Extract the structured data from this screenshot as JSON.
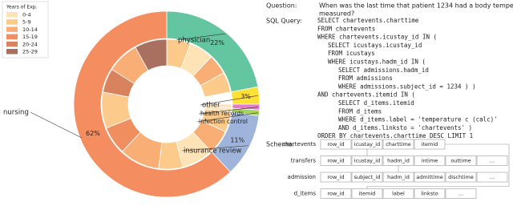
{
  "chart_data": {
    "type": "donut",
    "legend_title": "Years of Exp.",
    "experience_groups": [
      "0-4",
      "5-9",
      "10-14",
      "15-19",
      "20-24",
      "25-29"
    ],
    "experience_colors": [
      "#fde3b6",
      "#fccb8c",
      "#f9ae76",
      "#f08e60",
      "#d8825e",
      "#a9705f"
    ],
    "categories": [
      "physician",
      "other",
      "health records",
      "infection control",
      "insurance review",
      "nursing"
    ],
    "values": [
      22,
      3,
      1,
      1,
      11,
      62
    ],
    "value_labels": [
      "22%",
      "3%",
      null,
      null,
      "11%",
      "62%"
    ],
    "colors": [
      "#63c6a1",
      "#ffe135",
      "#e57cc6",
      "#a7d45a",
      "#9fb4da",
      "#f48d60"
    ],
    "inner_values": [
      6,
      6,
      5,
      5,
      3,
      1,
      1,
      5,
      6,
      8,
      6,
      10,
      7,
      9,
      6,
      8,
      8
    ],
    "inner_colors": [
      "#fccb8c",
      "#fde3b6",
      "#f9ae76",
      "#fccb8c",
      "#ffffff",
      "#fde3b6",
      "#fde3b6",
      "#fccb8c",
      "#f9ae76",
      "#fde3b6",
      "#fccb8c",
      "#f9ae76",
      "#f08e60",
      "#fccb8c",
      "#d8825e",
      "#f9ae76",
      "#a9705f"
    ]
  },
  "question": {
    "label": "Question:",
    "lines": [
      "When was the last time that patient 1234 had a body temperature",
      "measured?"
    ]
  },
  "sql": {
    "label": "SQL Query:",
    "lines": [
      {
        "text": "SELECT chartevents.charttime",
        "level": 0,
        "color": "#2a9d3a"
      },
      {
        "text": "FROM chartevents",
        "level": 0,
        "color": "#2a9d3a"
      },
      {
        "text": "WHERE chartevents.icustay_id IN (",
        "level": 0,
        "color": "#2a9d3a"
      },
      {
        "text": "SELECT icustays.icustay_id",
        "level": 1,
        "color": "#d62728"
      },
      {
        "text": "FROM icustays",
        "level": 1,
        "color": "#d62728"
      },
      {
        "text": "WHERE icustays.hadm_id IN (",
        "level": 1,
        "color": "#d62728"
      },
      {
        "text": "SELECT admissions.hadm_id",
        "level": 2,
        "color": "#1f77b4"
      },
      {
        "text": "FROM admissions",
        "level": 2,
        "color": "#1f77b4"
      },
      {
        "text": "WHERE admissions.subject_id = 1234 ) )",
        "level": 2,
        "color": "#1f77b4"
      },
      {
        "text": "AND chartevents.itemid IN (",
        "level": 0,
        "color": "#2a9d3a"
      },
      {
        "text": "SELECT d_items.itemid",
        "level": 2,
        "color": "#d62728"
      },
      {
        "text": "FROM d_items",
        "level": 2,
        "color": "#d62728"
      },
      {
        "text": "WHERE d_items.label = 'temperature c (calc)'",
        "level": 2,
        "color": "#d62728"
      },
      {
        "text": "AND d_items.linksto = 'chartevents' )",
        "level": 2,
        "color": "#d62728"
      },
      {
        "text": "ORDER BY chartevents.charttime DESC LIMIT 1",
        "level": 0,
        "color": "#2a9d3a"
      }
    ]
  },
  "schema": {
    "label": "Schema:",
    "tables": [
      {
        "name": "chartevents",
        "color": "#2a9d3a",
        "columns": [
          "row_id",
          "icustay_id",
          "charttime",
          "itemid"
        ]
      },
      {
        "name": "transfers",
        "color": "#d62728",
        "columns": [
          "row_id",
          "icustay_id",
          "hadm_id",
          "intime",
          "outtime",
          "..."
        ]
      },
      {
        "name": "admission",
        "color": "#1f77b4",
        "columns": [
          "row_id",
          "subject_id",
          "hadm_id",
          "admittime",
          "dischtime",
          "..."
        ]
      },
      {
        "name": "d_items",
        "color": "#e08a00",
        "columns": [
          "row_id",
          "itemid",
          "label",
          "linksto",
          "..."
        ]
      }
    ]
  }
}
